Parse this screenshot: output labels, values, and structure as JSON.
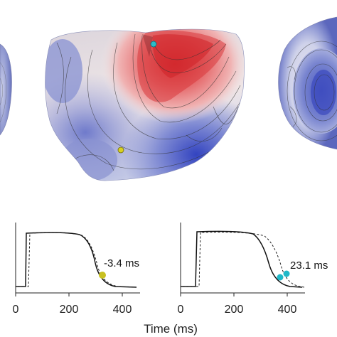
{
  "surfaces": {
    "colors": {
      "positive": "#d8262b",
      "neutral": "#f4ecec",
      "negative": "#3a4fc8"
    },
    "views": [
      "left-partial",
      "center-heart",
      "right-heart"
    ],
    "markers": [
      {
        "label": "cyan-site",
        "color": "#2bbcc8"
      },
      {
        "label": "yellow-site",
        "color": "#d8d020"
      }
    ]
  },
  "traces": {
    "xticks": [
      "0",
      "200",
      "400"
    ],
    "xlabel": "Time (ms)",
    "panels": [
      {
        "annotation": "-3.4 ms",
        "marker_color": "#c8c020",
        "marker_count": 1
      },
      {
        "annotation": "23.1 ms",
        "marker_color": "#1fb8c8",
        "marker_count": 2
      }
    ]
  }
}
